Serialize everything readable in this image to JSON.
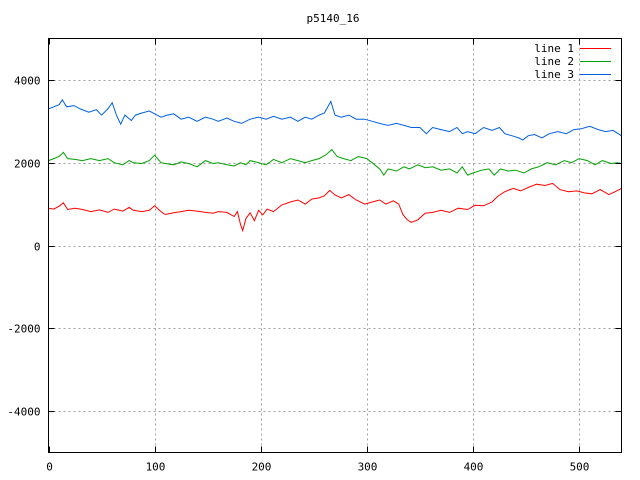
{
  "chart_data": {
    "type": "line",
    "title": "p5140_16",
    "xlim": [
      0,
      540
    ],
    "ylim": [
      -5000,
      5000
    ],
    "x_ticks": [
      0,
      100,
      200,
      300,
      400,
      500
    ],
    "y_ticks": [
      -4000,
      -2000,
      0,
      2000,
      4000
    ],
    "grid": true,
    "legend_position": "top-right",
    "series": [
      {
        "name": "line 1",
        "color": "#ff0000",
        "points": [
          [
            0,
            900
          ],
          [
            5,
            880
          ],
          [
            10,
            950
          ],
          [
            14,
            1030
          ],
          [
            18,
            870
          ],
          [
            25,
            900
          ],
          [
            32,
            870
          ],
          [
            40,
            820
          ],
          [
            48,
            860
          ],
          [
            56,
            800
          ],
          [
            62,
            880
          ],
          [
            70,
            830
          ],
          [
            76,
            920
          ],
          [
            80,
            850
          ],
          [
            88,
            820
          ],
          [
            95,
            850
          ],
          [
            100,
            960
          ],
          [
            106,
            820
          ],
          [
            110,
            750
          ],
          [
            118,
            790
          ],
          [
            125,
            820
          ],
          [
            132,
            850
          ],
          [
            140,
            830
          ],
          [
            148,
            800
          ],
          [
            155,
            780
          ],
          [
            160,
            820
          ],
          [
            168,
            800
          ],
          [
            175,
            700
          ],
          [
            178,
            820
          ],
          [
            181,
            500
          ],
          [
            183,
            360
          ],
          [
            186,
            650
          ],
          [
            190,
            790
          ],
          [
            194,
            600
          ],
          [
            198,
            850
          ],
          [
            202,
            740
          ],
          [
            206,
            880
          ],
          [
            212,
            820
          ],
          [
            220,
            980
          ],
          [
            228,
            1050
          ],
          [
            235,
            1100
          ],
          [
            242,
            1000
          ],
          [
            248,
            1120
          ],
          [
            255,
            1150
          ],
          [
            260,
            1200
          ],
          [
            265,
            1330
          ],
          [
            270,
            1220
          ],
          [
            276,
            1150
          ],
          [
            283,
            1230
          ],
          [
            290,
            1100
          ],
          [
            298,
            1000
          ],
          [
            305,
            1050
          ],
          [
            312,
            1100
          ],
          [
            318,
            1000
          ],
          [
            325,
            1080
          ],
          [
            330,
            1000
          ],
          [
            334,
            750
          ],
          [
            338,
            620
          ],
          [
            342,
            560
          ],
          [
            348,
            620
          ],
          [
            355,
            780
          ],
          [
            362,
            800
          ],
          [
            370,
            850
          ],
          [
            378,
            800
          ],
          [
            386,
            900
          ],
          [
            395,
            870
          ],
          [
            402,
            970
          ],
          [
            410,
            960
          ],
          [
            418,
            1050
          ],
          [
            423,
            1180
          ],
          [
            430,
            1300
          ],
          [
            438,
            1380
          ],
          [
            445,
            1320
          ],
          [
            452,
            1400
          ],
          [
            460,
            1480
          ],
          [
            468,
            1450
          ],
          [
            475,
            1500
          ],
          [
            482,
            1350
          ],
          [
            490,
            1300
          ],
          [
            498,
            1320
          ],
          [
            505,
            1270
          ],
          [
            512,
            1250
          ],
          [
            520,
            1350
          ],
          [
            528,
            1230
          ],
          [
            534,
            1300
          ],
          [
            540,
            1380
          ]
        ]
      },
      {
        "name": "line 2",
        "color": "#00a000",
        "points": [
          [
            0,
            2050
          ],
          [
            5,
            2100
          ],
          [
            10,
            2150
          ],
          [
            14,
            2250
          ],
          [
            18,
            2100
          ],
          [
            25,
            2080
          ],
          [
            32,
            2050
          ],
          [
            40,
            2100
          ],
          [
            48,
            2050
          ],
          [
            56,
            2100
          ],
          [
            62,
            2000
          ],
          [
            70,
            1950
          ],
          [
            76,
            2050
          ],
          [
            80,
            2000
          ],
          [
            88,
            1980
          ],
          [
            95,
            2050
          ],
          [
            100,
            2180
          ],
          [
            106,
            2000
          ],
          [
            110,
            1980
          ],
          [
            118,
            1950
          ],
          [
            125,
            2020
          ],
          [
            132,
            1980
          ],
          [
            140,
            1900
          ],
          [
            148,
            2050
          ],
          [
            155,
            1980
          ],
          [
            160,
            2000
          ],
          [
            168,
            1950
          ],
          [
            175,
            1920
          ],
          [
            181,
            2000
          ],
          [
            186,
            1950
          ],
          [
            190,
            2050
          ],
          [
            198,
            2000
          ],
          [
            205,
            1950
          ],
          [
            212,
            2080
          ],
          [
            220,
            2000
          ],
          [
            228,
            2100
          ],
          [
            235,
            2050
          ],
          [
            242,
            2000
          ],
          [
            248,
            2050
          ],
          [
            255,
            2100
          ],
          [
            262,
            2200
          ],
          [
            267,
            2320
          ],
          [
            272,
            2150
          ],
          [
            278,
            2100
          ],
          [
            285,
            2050
          ],
          [
            292,
            2150
          ],
          [
            300,
            2100
          ],
          [
            305,
            2000
          ],
          [
            312,
            1850
          ],
          [
            316,
            1700
          ],
          [
            320,
            1850
          ],
          [
            328,
            1800
          ],
          [
            335,
            1900
          ],
          [
            340,
            1850
          ],
          [
            348,
            1950
          ],
          [
            355,
            1880
          ],
          [
            362,
            1900
          ],
          [
            370,
            1820
          ],
          [
            378,
            1850
          ],
          [
            385,
            1750
          ],
          [
            390,
            1900
          ],
          [
            395,
            1700
          ],
          [
            400,
            1750
          ],
          [
            408,
            1820
          ],
          [
            415,
            1850
          ],
          [
            420,
            1700
          ],
          [
            426,
            1850
          ],
          [
            433,
            1800
          ],
          [
            440,
            1820
          ],
          [
            448,
            1750
          ],
          [
            455,
            1850
          ],
          [
            462,
            1900
          ],
          [
            470,
            2000
          ],
          [
            478,
            1950
          ],
          [
            486,
            2050
          ],
          [
            493,
            2000
          ],
          [
            500,
            2100
          ],
          [
            508,
            2050
          ],
          [
            515,
            1950
          ],
          [
            522,
            2050
          ],
          [
            530,
            1980
          ],
          [
            536,
            2000
          ],
          [
            540,
            1980
          ]
        ]
      },
      {
        "name": "line 3",
        "color": "#0060e0",
        "points": [
          [
            0,
            3300
          ],
          [
            5,
            3350
          ],
          [
            10,
            3400
          ],
          [
            13,
            3520
          ],
          [
            17,
            3350
          ],
          [
            24,
            3380
          ],
          [
            30,
            3300
          ],
          [
            38,
            3220
          ],
          [
            45,
            3280
          ],
          [
            50,
            3150
          ],
          [
            56,
            3300
          ],
          [
            60,
            3450
          ],
          [
            64,
            3150
          ],
          [
            68,
            2930
          ],
          [
            72,
            3150
          ],
          [
            78,
            3020
          ],
          [
            82,
            3150
          ],
          [
            88,
            3200
          ],
          [
            95,
            3250
          ],
          [
            100,
            3180
          ],
          [
            106,
            3100
          ],
          [
            112,
            3150
          ],
          [
            118,
            3180
          ],
          [
            125,
            3050
          ],
          [
            132,
            3100
          ],
          [
            140,
            3000
          ],
          [
            148,
            3100
          ],
          [
            155,
            3050
          ],
          [
            160,
            3000
          ],
          [
            168,
            3080
          ],
          [
            175,
            3000
          ],
          [
            182,
            2950
          ],
          [
            190,
            3050
          ],
          [
            198,
            3100
          ],
          [
            205,
            3050
          ],
          [
            212,
            3120
          ],
          [
            220,
            3050
          ],
          [
            228,
            3100
          ],
          [
            235,
            3000
          ],
          [
            242,
            3100
          ],
          [
            248,
            3050
          ],
          [
            255,
            3150
          ],
          [
            260,
            3200
          ],
          [
            266,
            3480
          ],
          [
            270,
            3150
          ],
          [
            276,
            3100
          ],
          [
            283,
            3150
          ],
          [
            290,
            3050
          ],
          [
            298,
            3050
          ],
          [
            305,
            3000
          ],
          [
            312,
            2950
          ],
          [
            320,
            2900
          ],
          [
            328,
            2950
          ],
          [
            335,
            2900
          ],
          [
            342,
            2850
          ],
          [
            350,
            2850
          ],
          [
            356,
            2700
          ],
          [
            362,
            2850
          ],
          [
            370,
            2800
          ],
          [
            378,
            2750
          ],
          [
            385,
            2850
          ],
          [
            390,
            2700
          ],
          [
            395,
            2750
          ],
          [
            402,
            2700
          ],
          [
            410,
            2850
          ],
          [
            418,
            2780
          ],
          [
            425,
            2850
          ],
          [
            430,
            2700
          ],
          [
            437,
            2650
          ],
          [
            443,
            2600
          ],
          [
            447,
            2550
          ],
          [
            452,
            2650
          ],
          [
            458,
            2680
          ],
          [
            465,
            2600
          ],
          [
            472,
            2700
          ],
          [
            480,
            2750
          ],
          [
            488,
            2700
          ],
          [
            495,
            2800
          ],
          [
            502,
            2820
          ],
          [
            510,
            2880
          ],
          [
            518,
            2800
          ],
          [
            525,
            2750
          ],
          [
            532,
            2780
          ],
          [
            537,
            2700
          ],
          [
            540,
            2650
          ]
        ]
      }
    ]
  }
}
